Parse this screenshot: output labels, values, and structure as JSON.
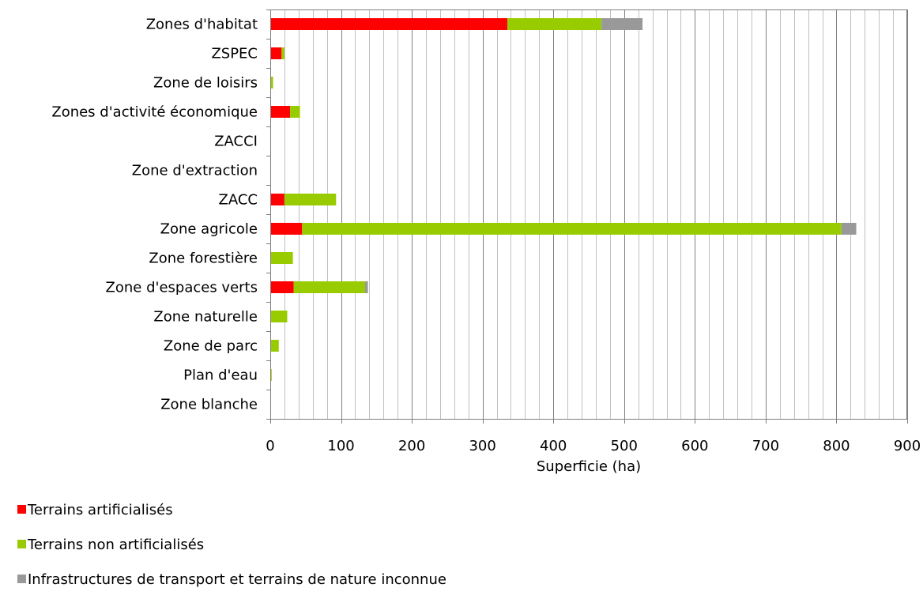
{
  "chart_data": {
    "type": "bar",
    "orientation": "horizontal",
    "stacked": true,
    "categories": [
      "Zones d'habitat",
      "ZSPEC",
      "Zone de loisirs",
      "Zones d'activité économique",
      "ZACCI",
      "Zone d'extraction",
      "ZACC",
      "Zone agricole",
      "Zone forestière",
      "Zone d'espaces verts",
      "Zone naturelle",
      "Zone de parc",
      "Plan d'eau",
      "Zone blanche"
    ],
    "series": [
      {
        "name": "Terrains artificialisés",
        "color": "#ff0000",
        "values": [
          335,
          16,
          0,
          28,
          0,
          0,
          20,
          45,
          0,
          33,
          0,
          0,
          0,
          0
        ]
      },
      {
        "name": "Terrains non artificialisés",
        "color": "#99cc00",
        "values": [
          133,
          4,
          4,
          14,
          0,
          0,
          73,
          762,
          32,
          101,
          24,
          12,
          2,
          0
        ]
      },
      {
        "name": "Infrastructures de transport et terrains de nature inconnue",
        "color": "#999999",
        "values": [
          58,
          0,
          0,
          0,
          0,
          0,
          0,
          21,
          0,
          4,
          0,
          0,
          0,
          0
        ]
      }
    ],
    "xlabel": "Superficie (ha)",
    "xlim": [
      0,
      900
    ],
    "xticks": [
      0,
      100,
      200,
      300,
      400,
      500,
      600,
      700,
      800,
      900
    ],
    "grid": true,
    "minor_grid_step": 20,
    "legend_position": "bottom-left"
  }
}
